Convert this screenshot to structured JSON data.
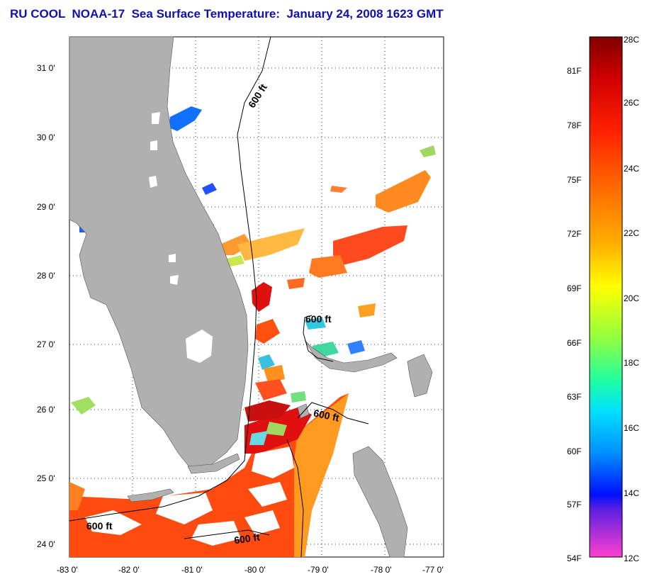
{
  "title": "RU COOL  NOAA-17  Sea Surface Temperature:  January 24, 2008 1623 GMT",
  "map": {
    "lon_ticks": [
      "-83 0'",
      "-82 0'",
      "-81 0'",
      "-80 0'",
      "-79 0'",
      "-78 0'",
      "-77 0'"
    ],
    "lat_ticks": [
      "31 0'",
      "30 0'",
      "29 0'",
      "28 0'",
      "27 0'",
      "26 0'",
      "25 0'",
      "24 0'"
    ],
    "contour_labels": [
      "600 ft",
      "600 ft",
      "600 ft",
      "600 ft",
      "600 ft"
    ],
    "land_color": "#b0b0b0"
  },
  "colorbar": {
    "celsius_labels": [
      "28C",
      "26C",
      "24C",
      "22C",
      "20C",
      "18C",
      "16C",
      "14C",
      "12C"
    ],
    "fahrenheit_labels": [
      "81F",
      "78F",
      "75F",
      "72F",
      "69F",
      "66F",
      "63F",
      "60F",
      "57F",
      "54F"
    ]
  }
}
